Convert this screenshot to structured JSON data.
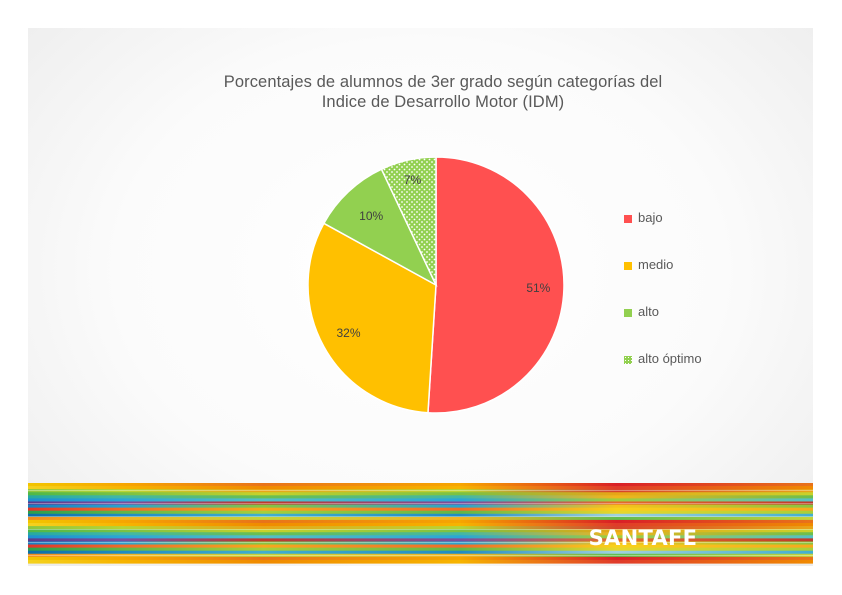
{
  "chart_data": {
    "type": "pie",
    "title_lines": [
      "Porcentajes de alumnos de 3er grado según categorías del",
      "Indice de Desarrollo Motor (IDM)"
    ],
    "categories": [
      "bajo",
      "medio",
      "alto",
      "alto óptimo"
    ],
    "values": [
      51,
      32,
      10,
      7
    ],
    "data_labels": [
      "51%",
      "32%",
      "10%",
      "7%"
    ],
    "colors": [
      "#ff5050",
      "#ffc000",
      "#92d050",
      "#92d050"
    ],
    "patterns": [
      "solid",
      "solid",
      "solid",
      "dotted"
    ],
    "legend_position": "right"
  },
  "logo": {
    "text": "SANTAFE"
  }
}
